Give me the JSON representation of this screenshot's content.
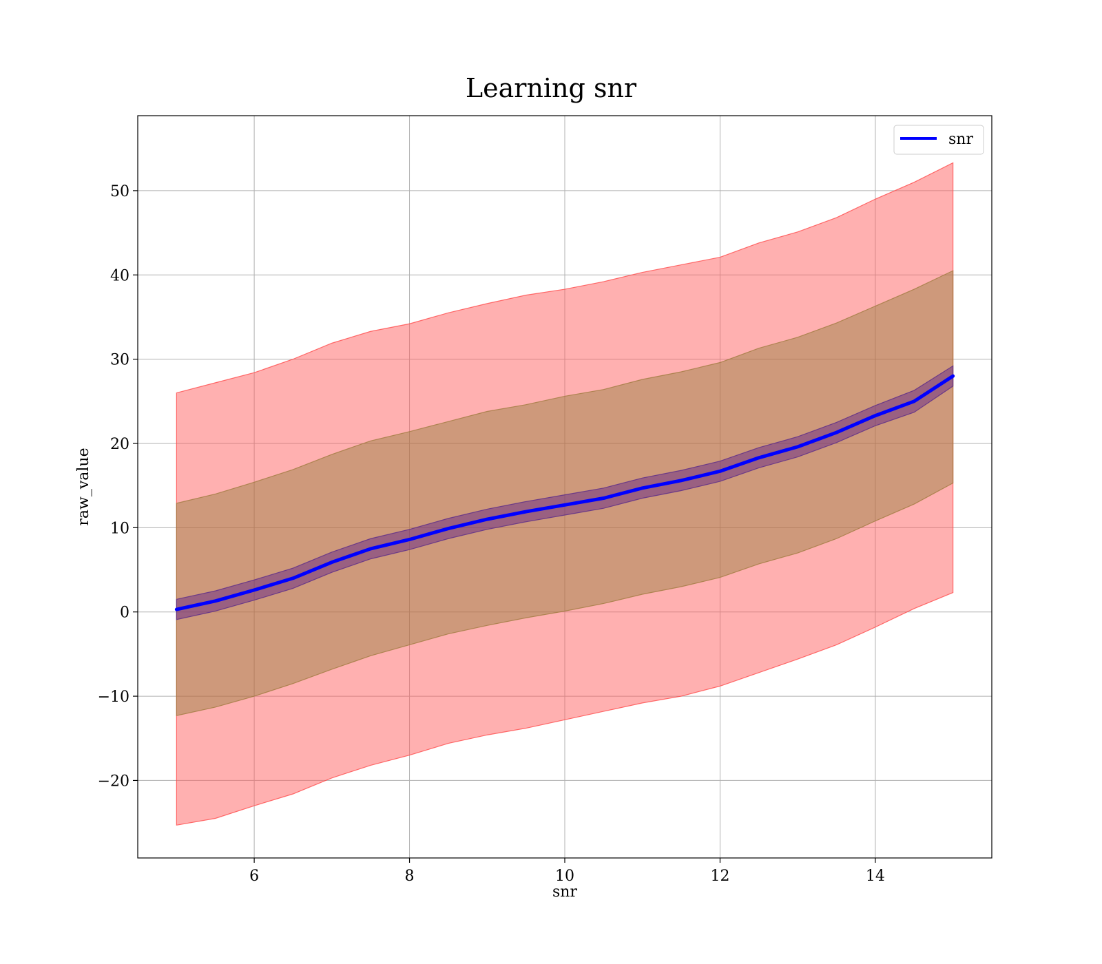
{
  "chart_data": {
    "type": "line",
    "title": "Learning snr",
    "xlabel": "snr",
    "ylabel": "raw_value",
    "xlim": [
      4.5,
      15.5
    ],
    "ylim": [
      -29.2,
      58.9
    ],
    "xticks": [
      6,
      8,
      10,
      12,
      14
    ],
    "yticks": [
      -20,
      -10,
      0,
      10,
      20,
      30,
      40,
      50
    ],
    "xtick_labels": [
      "6",
      "8",
      "10",
      "12",
      "14"
    ],
    "ytick_labels": [
      "−20",
      "−10",
      "0",
      "10",
      "20",
      "30",
      "40",
      "50"
    ],
    "grid": true,
    "legend": {
      "position": "top-right",
      "entries": [
        "snr"
      ]
    },
    "series": [
      {
        "name": "snr",
        "color": "#0000ff",
        "x": [
          5,
          5.5,
          6,
          6.5,
          7,
          7.5,
          8,
          8.5,
          9,
          9.5,
          10,
          10.5,
          11,
          11.5,
          12,
          12.5,
          13,
          13.5,
          14,
          14.5,
          15
        ],
        "y": [
          0.3,
          1.3,
          2.6,
          4.0,
          5.9,
          7.5,
          8.6,
          9.9,
          11.0,
          11.9,
          12.7,
          13.5,
          14.7,
          15.6,
          16.7,
          18.3,
          19.6,
          21.3,
          23.3,
          25.0,
          28.0
        ]
      }
    ],
    "bands": [
      {
        "color": "#ff5a5a",
        "opacity": 0.48,
        "edge_color": "#ff4a4a",
        "x": [
          5,
          5.5,
          6,
          6.5,
          7,
          7.5,
          8,
          8.5,
          9,
          9.5,
          10,
          10.5,
          11,
          11.5,
          12,
          12.5,
          13,
          13.5,
          14,
          14.5,
          15
        ],
        "upper": [
          26.0,
          27.2,
          28.4,
          30.0,
          31.9,
          33.3,
          34.2,
          35.5,
          36.6,
          37.6,
          38.3,
          39.2,
          40.3,
          41.2,
          42.1,
          43.8,
          45.1,
          46.8,
          49.0,
          51.0,
          53.3
        ],
        "lower": [
          -25.3,
          -24.5,
          -23.0,
          -21.6,
          -19.7,
          -18.2,
          -17.0,
          -15.6,
          -14.6,
          -13.8,
          -12.8,
          -11.8,
          -10.8,
          -10.0,
          -8.8,
          -7.2,
          -5.6,
          -3.9,
          -1.8,
          0.4,
          2.3
        ]
      },
      {
        "color": "#8a7a33",
        "opacity": 0.42,
        "edge_color": "#a07a40",
        "x": [
          5,
          5.5,
          6,
          6.5,
          7,
          7.5,
          8,
          8.5,
          9,
          9.5,
          10,
          10.5,
          11,
          11.5,
          12,
          12.5,
          13,
          13.5,
          14,
          14.5,
          15
        ],
        "upper": [
          12.9,
          14.0,
          15.4,
          16.9,
          18.7,
          20.3,
          21.4,
          22.6,
          23.8,
          24.6,
          25.6,
          26.4,
          27.6,
          28.5,
          29.6,
          31.3,
          32.6,
          34.3,
          36.3,
          38.3,
          40.5
        ],
        "lower": [
          -12.3,
          -11.3,
          -10.0,
          -8.5,
          -6.8,
          -5.2,
          -3.9,
          -2.6,
          -1.6,
          -0.7,
          0.1,
          1.0,
          2.1,
          3.0,
          4.1,
          5.7,
          7.0,
          8.7,
          10.8,
          12.8,
          15.3
        ]
      },
      {
        "color": "#5a1a8a",
        "opacity": 0.45,
        "edge_color": "#5a2a8a",
        "x": [
          5,
          5.5,
          6,
          6.5,
          7,
          7.5,
          8,
          8.5,
          9,
          9.5,
          10,
          10.5,
          11,
          11.5,
          12,
          12.5,
          13,
          13.5,
          14,
          14.5,
          15
        ],
        "upper": [
          1.5,
          2.5,
          3.8,
          5.2,
          7.1,
          8.7,
          9.8,
          11.1,
          12.2,
          13.1,
          13.9,
          14.7,
          15.9,
          16.8,
          17.9,
          19.5,
          20.8,
          22.5,
          24.5,
          26.3,
          29.2
        ],
        "lower": [
          -0.9,
          0.1,
          1.4,
          2.8,
          4.7,
          6.3,
          7.4,
          8.7,
          9.8,
          10.7,
          11.5,
          12.3,
          13.5,
          14.4,
          15.5,
          17.1,
          18.4,
          20.1,
          22.1,
          23.7,
          26.8
        ]
      }
    ]
  }
}
